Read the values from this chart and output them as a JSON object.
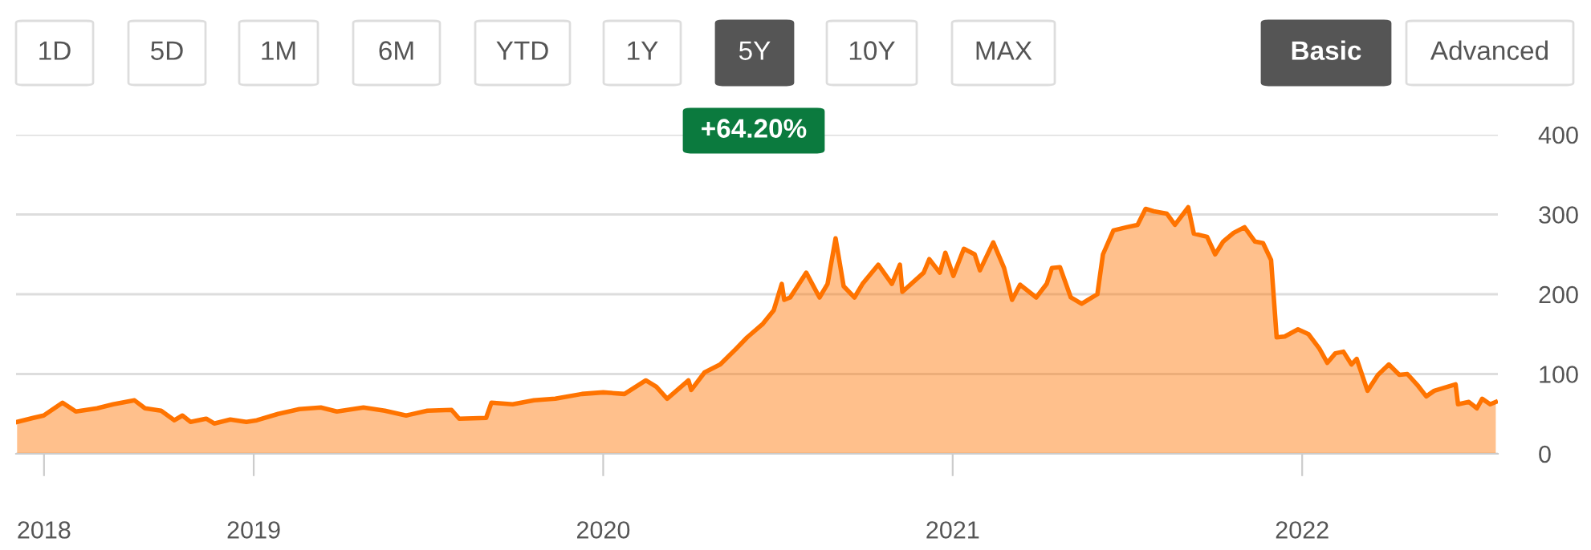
{
  "chart_data": {
    "type": "area",
    "x": [
      2018.323,
      2018.369,
      2018.399,
      2018.453,
      2018.491,
      2018.552,
      2018.598,
      2018.659,
      2018.689,
      2018.735,
      2018.773,
      2018.796,
      2018.819,
      2018.864,
      2018.887,
      2018.933,
      2018.979,
      2019.009,
      2019.07,
      2019.131,
      2019.192,
      2019.238,
      2019.314,
      2019.375,
      2019.436,
      2019.497,
      2019.566,
      2019.588,
      2019.665,
      2019.68,
      2019.741,
      2019.802,
      2019.863,
      2019.939,
      2020.0,
      2020.061,
      2020.122,
      2020.152,
      2020.183,
      2020.244,
      2020.252,
      2020.29,
      2020.335,
      2020.381,
      2020.412,
      2020.457,
      2020.488,
      2020.511,
      2020.518,
      2020.535,
      2020.581,
      2020.619,
      2020.642,
      2020.665,
      2020.688,
      2020.719,
      2020.742,
      2020.787,
      2020.826,
      2020.849,
      2020.856,
      2020.917,
      2020.933,
      2020.963,
      2020.979,
      2021.002,
      2021.032,
      2021.063,
      2021.078,
      2021.116,
      2021.147,
      2021.17,
      2021.193,
      2021.239,
      2021.269,
      2021.284,
      2021.307,
      2021.338,
      2021.369,
      2021.399,
      2021.414,
      2021.43,
      2021.46,
      2021.498,
      2021.529,
      2021.552,
      2021.575,
      2021.613,
      2021.636,
      2021.674,
      2021.69,
      2021.728,
      2021.751,
      2021.774,
      2021.804,
      2021.835,
      2021.865,
      2021.888,
      2021.911,
      2021.927,
      2021.95,
      2021.988,
      2022.018,
      2022.049,
      2022.072,
      2022.095,
      2022.118,
      2022.141,
      2022.156,
      2022.187,
      2022.217,
      2022.248,
      2022.278,
      2022.301,
      2022.332,
      2022.355,
      2022.378,
      2022.416,
      2022.439,
      2022.446,
      2022.477,
      2022.5,
      2022.515,
      2022.538,
      2022.554
    ],
    "series": [
      {
        "color": "#ff7300",
        "values": [
          40,
          45,
          48,
          64,
          53,
          57,
          62,
          67,
          57,
          54,
          42,
          48,
          40,
          44,
          38,
          43,
          40,
          42,
          50,
          56,
          58,
          53,
          58,
          54,
          48,
          54,
          55,
          44,
          45,
          64,
          62,
          67,
          69,
          75,
          77,
          75,
          92,
          84,
          69,
          92,
          80,
          102,
          112,
          132,
          146,
          163,
          180,
          213,
          193,
          196,
          227,
          196,
          213,
          270,
          210,
          196,
          213,
          237,
          213,
          237,
          203,
          227,
          244,
          227,
          252,
          223,
          257,
          250,
          230,
          265,
          233,
          193,
          212,
          196,
          213,
          233,
          234,
          196,
          188,
          196,
          200,
          250,
          280,
          284,
          287,
          307,
          304,
          301,
          287,
          309,
          276,
          272,
          250,
          266,
          277,
          284,
          266,
          264,
          243,
          146,
          147,
          156,
          150,
          132,
          114,
          126,
          128,
          112,
          119,
          79,
          99,
          112,
          99,
          100,
          85,
          72,
          79,
          84,
          87,
          62,
          65,
          57,
          69,
          62,
          65
        ]
      }
    ],
    "xlim": [
      2018.32,
      2022.56
    ],
    "ylim": [
      0,
      400
    ],
    "yticks": [
      0,
      100,
      200,
      300,
      400
    ],
    "xticks": [
      {
        "value": 2018.4,
        "label": "2018"
      },
      2019,
      2020,
      2021,
      2022
    ],
    "grid": "y",
    "annotations": [
      "1D",
      "5D",
      "1M",
      "6M",
      "YTD",
      "1Y",
      "5Y",
      "10Y",
      "MAX",
      "Basic",
      "Advanced",
      "+64.20%"
    ]
  }
}
